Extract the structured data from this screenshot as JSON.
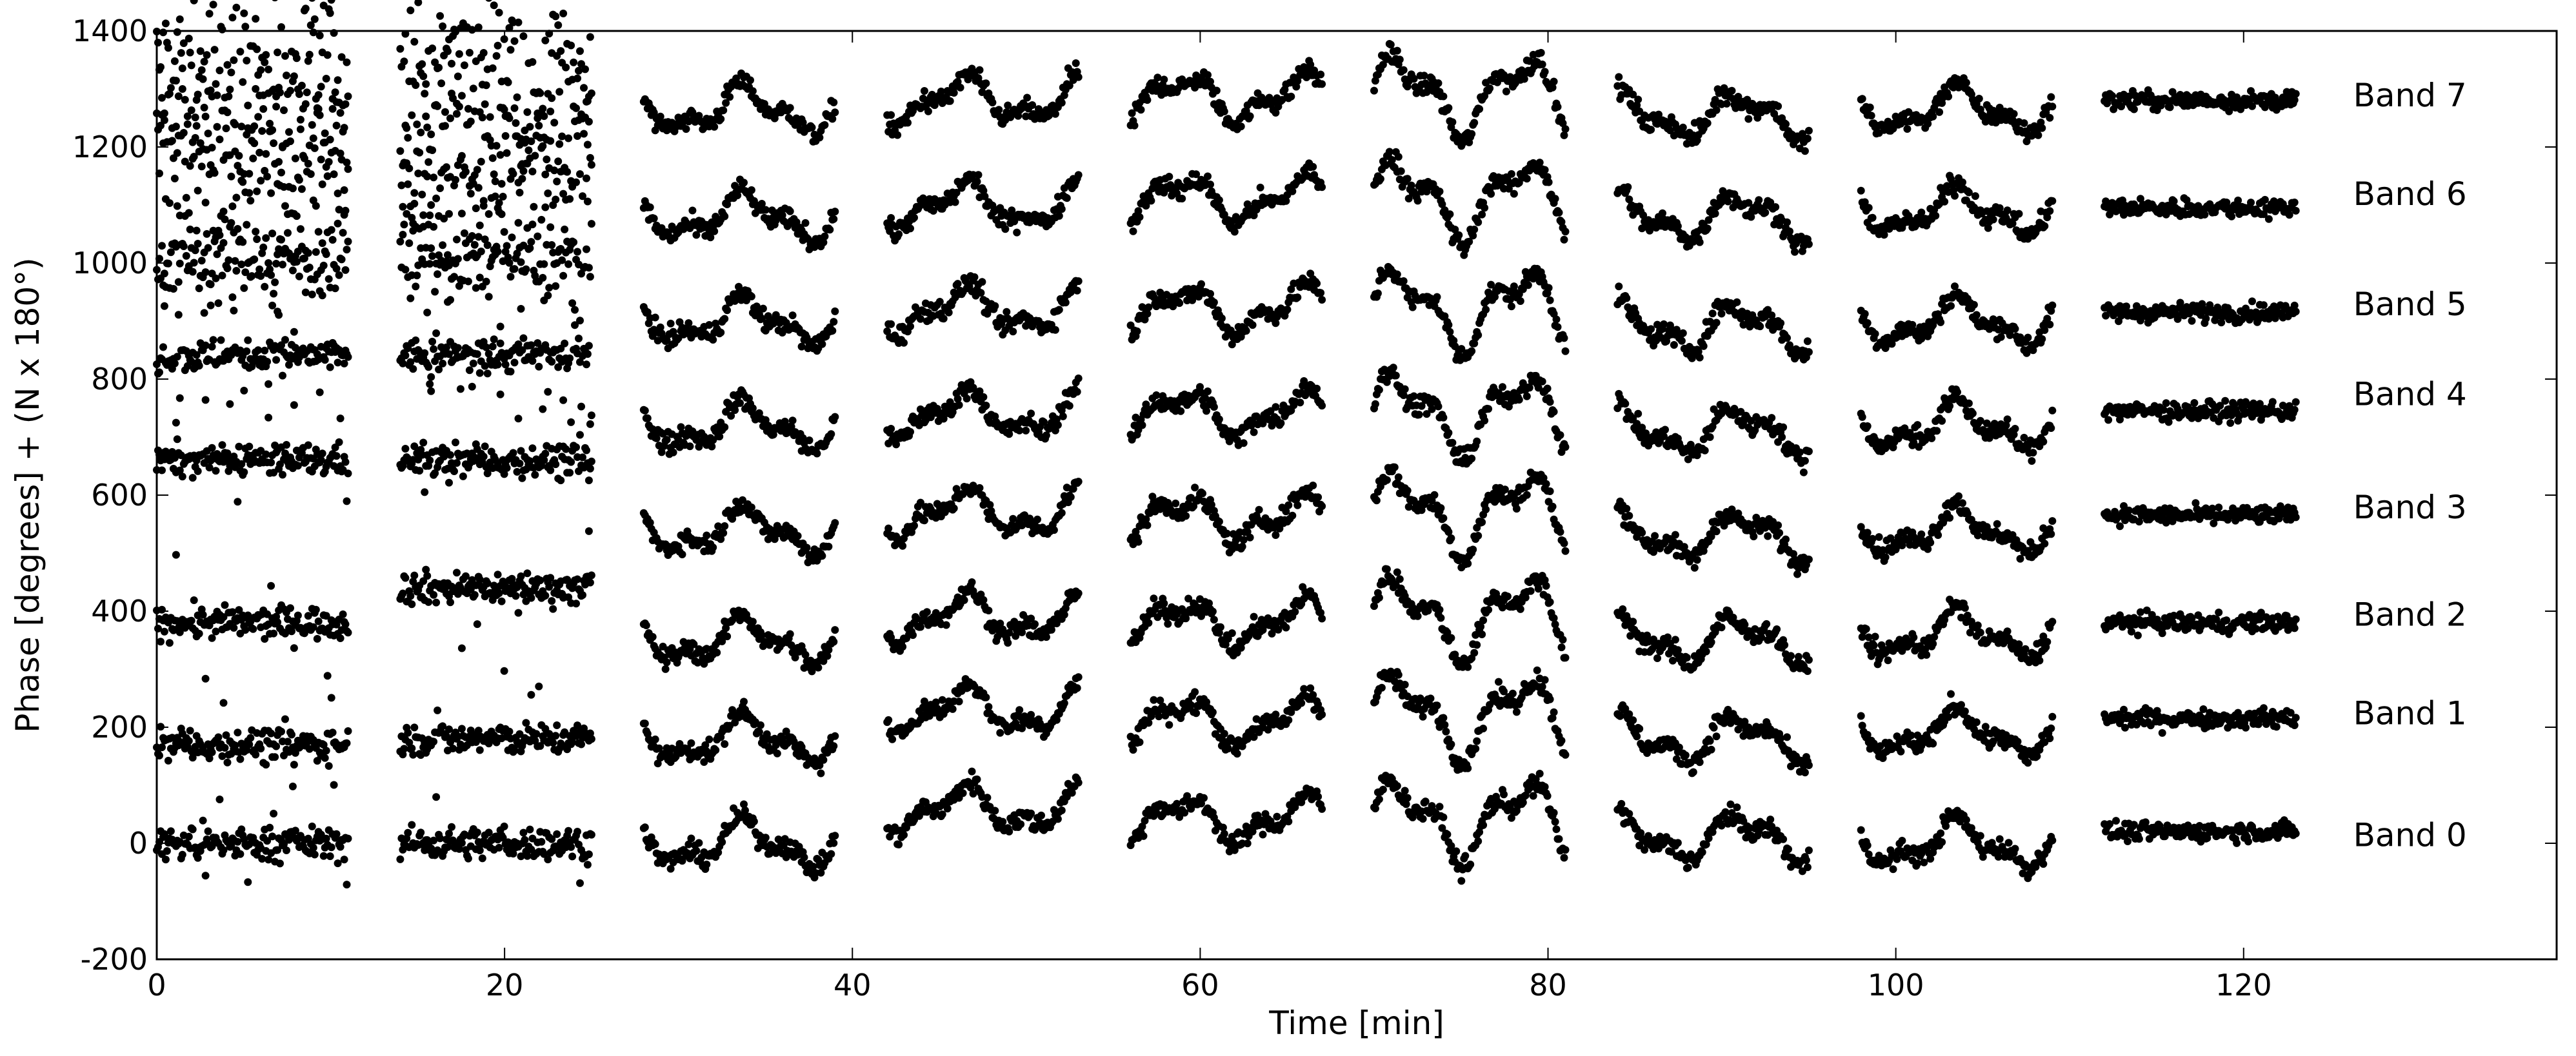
{
  "chart_data": {
    "type": "scatter",
    "title": "",
    "xlabel": "Time [min]",
    "ylabel": "Phase [degrees] + (N x 180°)",
    "xlim": [
      0,
      138
    ],
    "ylim": [
      -200,
      1400
    ],
    "x_ticks": [
      0,
      20,
      40,
      60,
      80,
      100,
      120
    ],
    "y_ticks": [
      -200,
      0,
      200,
      400,
      600,
      800,
      1000,
      1200,
      1400
    ],
    "grid": false,
    "legend": "none",
    "marker_color": "#000000",
    "segments": [
      {
        "x_start": 0,
        "x_end": 11,
        "style": "noisy"
      },
      {
        "x_start": 14,
        "x_end": 25,
        "style": "noisy"
      },
      {
        "x_start": 28,
        "x_end": 39,
        "style": "wave"
      },
      {
        "x_start": 42,
        "x_end": 53,
        "style": "wave"
      },
      {
        "x_start": 56,
        "x_end": 67,
        "style": "wave"
      },
      {
        "x_start": 70,
        "x_end": 81,
        "style": "wave-strong"
      },
      {
        "x_start": 84,
        "x_end": 95,
        "style": "wave"
      },
      {
        "x_start": 98,
        "x_end": 109,
        "style": "wave"
      },
      {
        "x_start": 112,
        "x_end": 123,
        "style": "flat"
      }
    ],
    "series": [
      {
        "name": "Band 7",
        "label": "Band 7",
        "label_y": 1290,
        "segment_levels": [
          1325,
          1330,
          1265,
          1280,
          1285,
          1290,
          1255,
          1265,
          1280
        ]
      },
      {
        "name": "Band 6",
        "label": "Band 6",
        "label_y": 1120,
        "segment_levels": [
          1180,
          1180,
          1080,
          1100,
          1110,
          1110,
          1080,
          1090,
          1095
        ]
      },
      {
        "name": "Band 5",
        "label": "Band 5",
        "label_y": 930,
        "segment_levels": [
          1010,
          1010,
          900,
          920,
          920,
          920,
          890,
          900,
          915
        ]
      },
      {
        "name": "Band 4",
        "label": "Band 4",
        "label_y": 775,
        "segment_levels": [
          840,
          840,
          720,
          740,
          740,
          740,
          710,
          720,
          745
        ]
      },
      {
        "name": "Band 3",
        "label": "Band 3",
        "label_y": 580,
        "segment_levels": [
          660,
          660,
          540,
          570,
          560,
          570,
          530,
          540,
          565
        ]
      },
      {
        "name": "Band 2",
        "label": "Band 2",
        "label_y": 395,
        "segment_levels": [
          380,
          440,
          350,
          390,
          380,
          390,
          350,
          360,
          380
        ]
      },
      {
        "name": "Band 1",
        "label": "Band 1",
        "label_y": 225,
        "segment_levels": [
          170,
          180,
          180,
          230,
          210,
          220,
          180,
          190,
          215
        ]
      },
      {
        "name": "Band 0",
        "label": "Band 0",
        "label_y": 15,
        "segment_levels": [
          0,
          0,
          0,
          60,
          40,
          40,
          10,
          0,
          20
        ]
      }
    ]
  }
}
